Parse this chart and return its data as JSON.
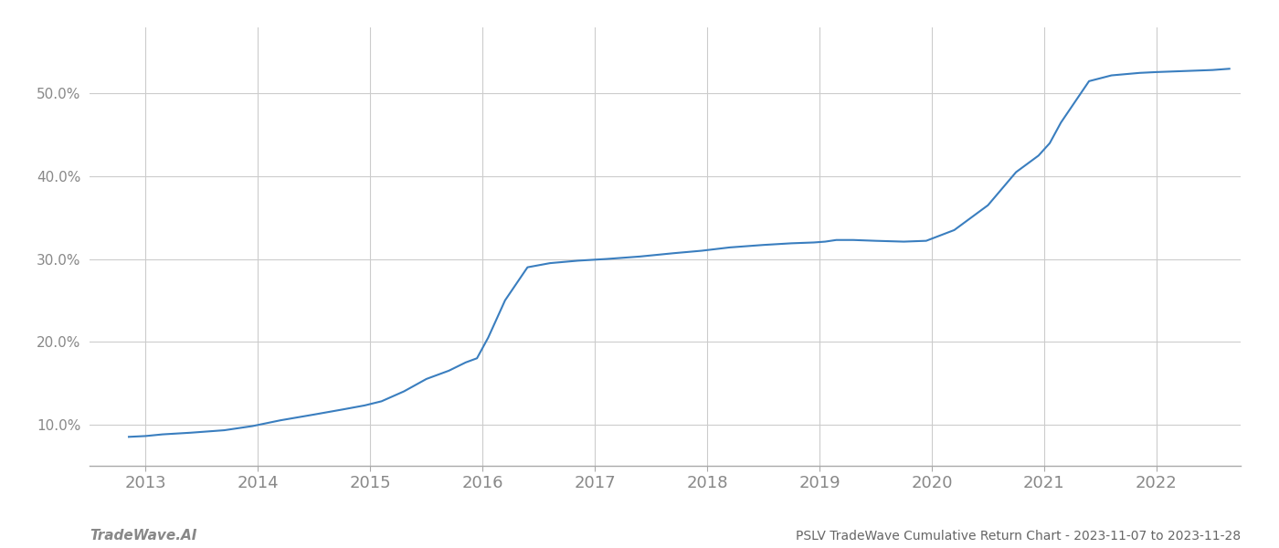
{
  "title": "PSLV TradeWave Cumulative Return Chart - 2023-11-07 to 2023-11-28",
  "watermark": "TradeWave.AI",
  "line_color": "#3a7ebf",
  "background_color": "#ffffff",
  "grid_color": "#cccccc",
  "x_years": [
    2013,
    2014,
    2015,
    2016,
    2017,
    2018,
    2019,
    2020,
    2021,
    2022
  ],
  "yticks": [
    10.0,
    20.0,
    30.0,
    40.0,
    50.0
  ],
  "xlim": [
    2012.5,
    2022.75
  ],
  "ylim": [
    5.0,
    58.0
  ],
  "data_x": [
    2012.85,
    2013.0,
    2013.15,
    2013.4,
    2013.7,
    2013.95,
    2014.2,
    2014.5,
    2014.75,
    2014.95,
    2015.1,
    2015.3,
    2015.5,
    2015.7,
    2015.85,
    2015.95,
    2016.05,
    2016.2,
    2016.4,
    2016.6,
    2016.85,
    2017.1,
    2017.4,
    2017.7,
    2017.95,
    2018.2,
    2018.5,
    2018.75,
    2018.95,
    2019.05,
    2019.15,
    2019.3,
    2019.5,
    2019.75,
    2019.95,
    2020.2,
    2020.5,
    2020.75,
    2020.95,
    2021.05,
    2021.15,
    2021.4,
    2021.6,
    2021.85,
    2022.0,
    2022.2,
    2022.5,
    2022.65
  ],
  "data_y": [
    8.5,
    8.6,
    8.8,
    9.0,
    9.3,
    9.8,
    10.5,
    11.2,
    11.8,
    12.3,
    12.8,
    14.0,
    15.5,
    16.5,
    17.5,
    18.0,
    20.5,
    25.0,
    29.0,
    29.5,
    29.8,
    30.0,
    30.3,
    30.7,
    31.0,
    31.4,
    31.7,
    31.9,
    32.0,
    32.1,
    32.3,
    32.3,
    32.2,
    32.1,
    32.2,
    33.5,
    36.5,
    40.5,
    42.5,
    44.0,
    46.5,
    51.5,
    52.2,
    52.5,
    52.6,
    52.7,
    52.85,
    53.0
  ]
}
